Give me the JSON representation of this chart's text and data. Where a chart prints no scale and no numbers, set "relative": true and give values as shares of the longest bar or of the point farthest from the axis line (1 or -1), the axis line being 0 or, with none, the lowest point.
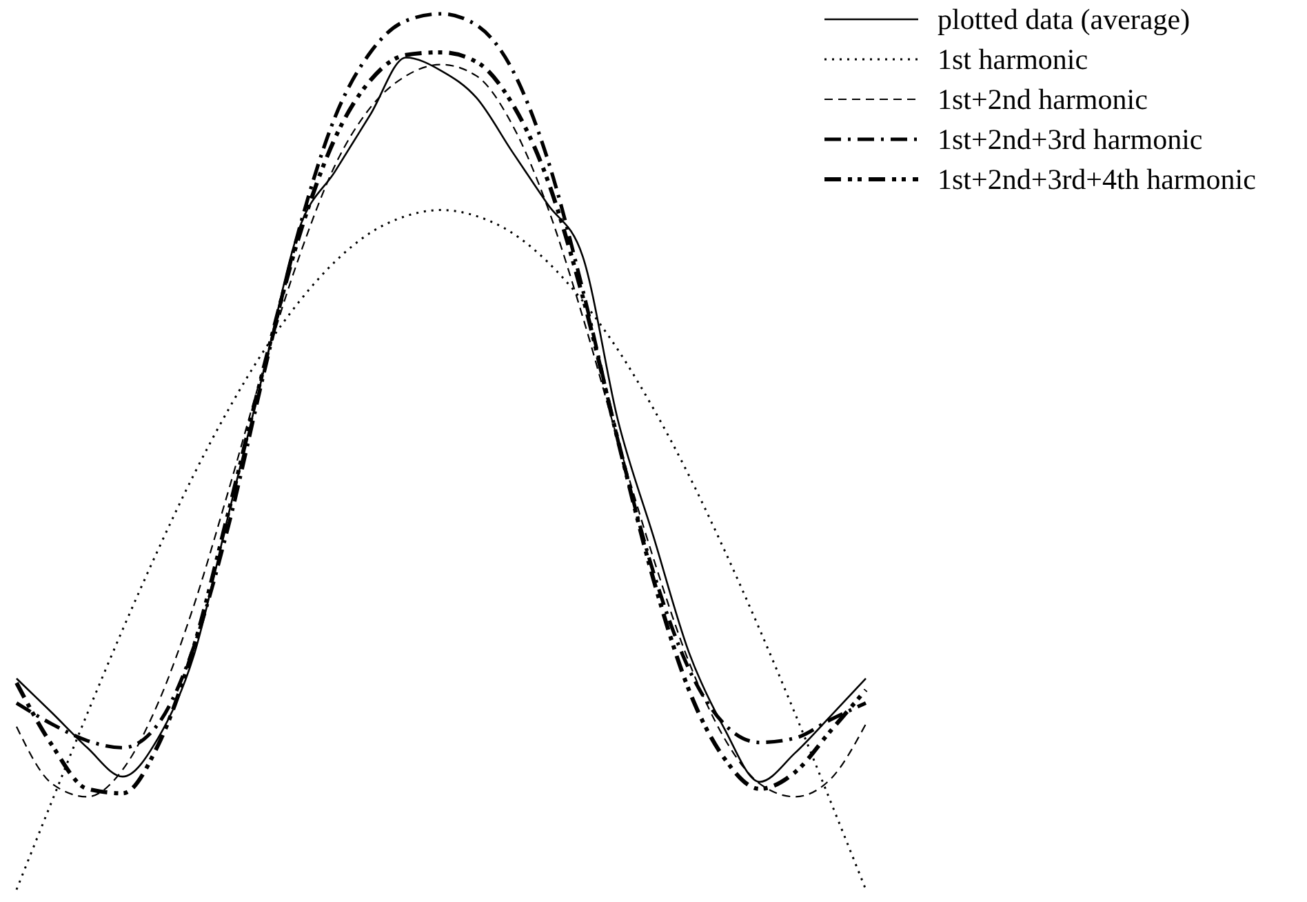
{
  "chart_data": {
    "type": "line",
    "relative": true,
    "legend": "top right",
    "categories": [
      null,
      null,
      null,
      null,
      null,
      null,
      null,
      null,
      null,
      null,
      null,
      null,
      null,
      null,
      null,
      null,
      null,
      null,
      null,
      null,
      null,
      null,
      null,
      null,
      null
    ],
    "series": [
      {
        "name": "plotted data (average)",
        "color": "#000000",
        "line_style": "solid",
        "values": [
          0.241,
          0.202,
          0.162,
          0.129,
          0.173,
          0.266,
          0.43,
          0.595,
          0.756,
          0.82,
          0.885,
          0.95,
          0.935,
          0.904,
          0.843,
          0.783,
          0.723,
          0.535,
          0.403,
          0.271,
          0.184,
          0.123,
          0.156,
          0.198,
          0.241
        ]
      },
      {
        "name": "1st harmonic",
        "color": "#000000",
        "line_style": "dotted",
        "values": [
          0,
          0.101,
          0.201,
          0.297,
          0.388,
          0.473,
          0.549,
          0.616,
          0.672,
          0.717,
          0.75,
          0.769,
          0.776,
          0.769,
          0.75,
          0.717,
          0.672,
          0.616,
          0.549,
          0.473,
          0.388,
          0.297,
          0.201,
          0.101,
          0
        ]
      },
      {
        "name": "1st+2nd harmonic",
        "color": "#000000",
        "line_style": "dashed",
        "values": [
          0.186,
          0.121,
          0.106,
          0.137,
          0.213,
          0.323,
          0.457,
          0.598,
          0.724,
          0.827,
          0.893,
          0.929,
          0.942,
          0.929,
          0.874,
          0.78,
          0.654,
          0.512,
          0.378,
          0.26,
          0.173,
          0.121,
          0.106,
          0.126,
          0.189
        ]
      },
      {
        "name": "1st+2nd+3rd harmonic",
        "color": "#000000",
        "line_style": "dashdot",
        "values": [
          0.213,
          0.189,
          0.17,
          0.162,
          0.189,
          0.276,
          0.417,
          0.591,
          0.756,
          0.882,
          0.956,
          0.992,
          1,
          0.987,
          0.937,
          0.835,
          0.685,
          0.512,
          0.362,
          0.252,
          0.189,
          0.168,
          0.173,
          0.194,
          0.213
        ]
      },
      {
        "name": "1st+2nd+3rd+4th harmonic",
        "color": "#000000",
        "line_style": "dashdotdot",
        "values": [
          0.236,
          0.165,
          0.115,
          0.11,
          0.165,
          0.276,
          0.433,
          0.598,
          0.748,
          0.858,
          0.924,
          0.953,
          0.956,
          0.945,
          0.898,
          0.811,
          0.677,
          0.512,
          0.354,
          0.228,
          0.15,
          0.115,
          0.134,
          0.181,
          0.228
        ]
      }
    ]
  }
}
